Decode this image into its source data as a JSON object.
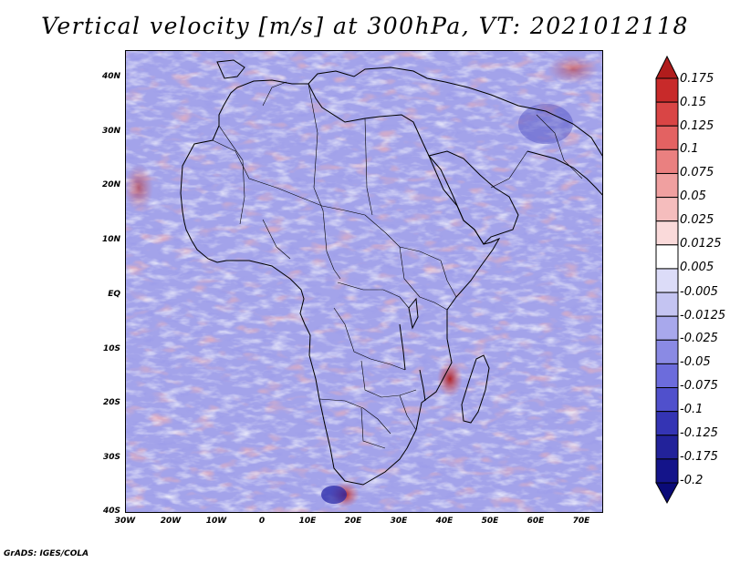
{
  "title": "Vertical velocity [m/s] at 300hPa, VT: 2021012118",
  "credit": "GrADS: IGES/COLA",
  "map": {
    "region": "Africa",
    "lat_labels": [
      "40N",
      "30N",
      "20N",
      "10N",
      "EQ",
      "10S",
      "20S",
      "30S",
      "40S"
    ],
    "lon_labels": [
      "30W",
      "20W",
      "10W",
      "0",
      "10E",
      "20E",
      "30E",
      "40E",
      "50E",
      "60E",
      "70E"
    ]
  },
  "colorbar": {
    "labels": [
      "0.175",
      "0.15",
      "0.125",
      "0.1",
      "0.075",
      "0.05",
      "0.025",
      "0.0125",
      "0.005",
      "-0.005",
      "-0.0125",
      "-0.025",
      "-0.05",
      "-0.075",
      "-0.1",
      "-0.125",
      "-0.175",
      "-0.2"
    ],
    "colors": [
      "#b01c1c",
      "#c82a2a",
      "#d94545",
      "#e36262",
      "#ea8080",
      "#f0a0a0",
      "#f5bdbd",
      "#fadada",
      "#ffffff",
      "#dcdcf8",
      "#c4c4f2",
      "#a8a8ec",
      "#8a8ae4",
      "#6c6cdc",
      "#5050cc",
      "#3434b4",
      "#22229a",
      "#14148a",
      "#0a0a78"
    ]
  },
  "palette": {
    "background": "#9c9ce8",
    "land_outline": "#000000"
  }
}
